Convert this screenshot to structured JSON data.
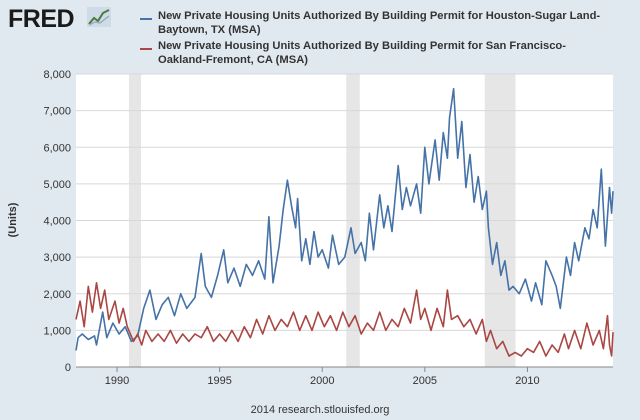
{
  "header": {
    "logo_text": "FRED",
    "logo_icon": "trend-line-icon",
    "legend": [
      {
        "label": "New Private Housing Units Authorized By Building Permit for Houston-Sugar Land-Baytown, TX (MSA)",
        "color": "#4572a7"
      },
      {
        "label": "New Private Housing Units Authorized By Building Permit for San Francisco-Oakland-Fremont, CA (MSA)",
        "color": "#aa4643"
      }
    ]
  },
  "footer": {
    "source": "2014 research.stlouisfed.org"
  },
  "chart_data": {
    "type": "line",
    "title": "",
    "xlabel": "",
    "ylabel": "(Units)",
    "xlim": [
      1988.0,
      2014.17
    ],
    "ylim": [
      0,
      8000
    ],
    "x_ticks": [
      1990,
      1995,
      2000,
      2005,
      2010
    ],
    "y_ticks": [
      0,
      1000,
      2000,
      3000,
      4000,
      5000,
      6000,
      7000,
      8000
    ],
    "y_tick_labels": [
      "0",
      "1,000",
      "2,000",
      "3,000",
      "4,000",
      "5,000",
      "6,000",
      "7,000",
      "8,000"
    ],
    "grid": true,
    "recessions": [
      [
        1990.58,
        1991.17
      ],
      [
        2001.17,
        2001.83
      ],
      [
        2007.92,
        2009.42
      ]
    ],
    "recession_color": "#e6e6e6",
    "series": [
      {
        "name": "New Private Housing Units Authorized By Building Permit for Houston-Sugar Land-Baytown, TX (MSA)",
        "color": "#4572a7",
        "points": [
          [
            1988.0,
            450
          ],
          [
            1988.1,
            800
          ],
          [
            1988.3,
            900
          ],
          [
            1988.6,
            750
          ],
          [
            1988.9,
            850
          ],
          [
            1989.0,
            600
          ],
          [
            1989.3,
            1500
          ],
          [
            1989.5,
            800
          ],
          [
            1989.8,
            1200
          ],
          [
            1990.1,
            900
          ],
          [
            1990.4,
            1100
          ],
          [
            1990.7,
            700
          ],
          [
            1991.0,
            850
          ],
          [
            1991.3,
            1600
          ],
          [
            1991.6,
            2100
          ],
          [
            1991.9,
            1300
          ],
          [
            1992.2,
            1700
          ],
          [
            1992.5,
            1900
          ],
          [
            1992.8,
            1400
          ],
          [
            1993.1,
            2000
          ],
          [
            1993.4,
            1600
          ],
          [
            1993.8,
            1900
          ],
          [
            1994.1,
            3100
          ],
          [
            1994.3,
            2200
          ],
          [
            1994.6,
            1900
          ],
          [
            1994.9,
            2500
          ],
          [
            1995.2,
            3200
          ],
          [
            1995.4,
            2300
          ],
          [
            1995.7,
            2700
          ],
          [
            1996.0,
            2200
          ],
          [
            1996.3,
            2800
          ],
          [
            1996.6,
            2500
          ],
          [
            1996.9,
            2900
          ],
          [
            1997.2,
            2400
          ],
          [
            1997.4,
            4100
          ],
          [
            1997.6,
            2300
          ],
          [
            1997.9,
            3300
          ],
          [
            1998.1,
            4300
          ],
          [
            1998.3,
            5100
          ],
          [
            1998.5,
            4400
          ],
          [
            1998.7,
            3800
          ],
          [
            1998.8,
            4600
          ],
          [
            1999.0,
            2900
          ],
          [
            1999.2,
            3500
          ],
          [
            1999.4,
            2800
          ],
          [
            1999.6,
            3700
          ],
          [
            1999.8,
            3000
          ],
          [
            2000.0,
            3200
          ],
          [
            2000.3,
            2700
          ],
          [
            2000.5,
            3600
          ],
          [
            2000.8,
            2800
          ],
          [
            2001.1,
            3000
          ],
          [
            2001.4,
            3800
          ],
          [
            2001.6,
            3100
          ],
          [
            2001.9,
            3400
          ],
          [
            2002.1,
            2900
          ],
          [
            2002.3,
            4200
          ],
          [
            2002.5,
            3200
          ],
          [
            2002.8,
            4700
          ],
          [
            2003.0,
            3800
          ],
          [
            2003.2,
            4400
          ],
          [
            2003.4,
            3700
          ],
          [
            2003.7,
            5500
          ],
          [
            2003.9,
            4300
          ],
          [
            2004.1,
            4900
          ],
          [
            2004.3,
            4400
          ],
          [
            2004.6,
            5000
          ],
          [
            2004.8,
            4200
          ],
          [
            2005.0,
            6000
          ],
          [
            2005.2,
            5000
          ],
          [
            2005.5,
            6200
          ],
          [
            2005.7,
            5100
          ],
          [
            2005.9,
            6400
          ],
          [
            2006.1,
            5700
          ],
          [
            2006.2,
            6800
          ],
          [
            2006.4,
            7600
          ],
          [
            2006.6,
            5700
          ],
          [
            2006.8,
            6700
          ],
          [
            2007.0,
            4900
          ],
          [
            2007.2,
            5800
          ],
          [
            2007.4,
            4500
          ],
          [
            2007.6,
            5200
          ],
          [
            2007.8,
            4300
          ],
          [
            2008.0,
            4800
          ],
          [
            2008.1,
            3800
          ],
          [
            2008.3,
            2800
          ],
          [
            2008.5,
            3400
          ],
          [
            2008.7,
            2500
          ],
          [
            2008.9,
            2900
          ],
          [
            2009.1,
            2100
          ],
          [
            2009.3,
            2200
          ],
          [
            2009.6,
            2000
          ],
          [
            2009.9,
            2400
          ],
          [
            2010.2,
            1800
          ],
          [
            2010.4,
            2300
          ],
          [
            2010.7,
            1700
          ],
          [
            2010.9,
            2900
          ],
          [
            2011.2,
            2500
          ],
          [
            2011.4,
            2200
          ],
          [
            2011.6,
            1600
          ],
          [
            2011.9,
            3000
          ],
          [
            2012.1,
            2500
          ],
          [
            2012.3,
            3400
          ],
          [
            2012.5,
            2900
          ],
          [
            2012.8,
            3800
          ],
          [
            2013.0,
            3500
          ],
          [
            2013.2,
            4300
          ],
          [
            2013.4,
            3800
          ],
          [
            2013.6,
            5400
          ],
          [
            2013.8,
            3300
          ],
          [
            2014.0,
            4900
          ],
          [
            2014.1,
            4200
          ],
          [
            2014.17,
            4800
          ]
        ]
      },
      {
        "name": "New Private Housing Units Authorized By Building Permit for San Francisco-Oakland-Fremont, CA (MSA)",
        "color": "#aa4643",
        "points": [
          [
            1988.0,
            1300
          ],
          [
            1988.2,
            1800
          ],
          [
            1988.4,
            1100
          ],
          [
            1988.6,
            2200
          ],
          [
            1988.8,
            1500
          ],
          [
            1989.0,
            2300
          ],
          [
            1989.2,
            1600
          ],
          [
            1989.4,
            2100
          ],
          [
            1989.6,
            1300
          ],
          [
            1989.9,
            1800
          ],
          [
            1990.1,
            1200
          ],
          [
            1990.3,
            1600
          ],
          [
            1990.5,
            1100
          ],
          [
            1990.8,
            700
          ],
          [
            1991.0,
            900
          ],
          [
            1991.2,
            600
          ],
          [
            1991.4,
            1000
          ],
          [
            1991.7,
            700
          ],
          [
            1992.0,
            900
          ],
          [
            1992.3,
            700
          ],
          [
            1992.6,
            1000
          ],
          [
            1992.9,
            650
          ],
          [
            1993.2,
            900
          ],
          [
            1993.5,
            700
          ],
          [
            1993.8,
            900
          ],
          [
            1994.1,
            800
          ],
          [
            1994.4,
            1100
          ],
          [
            1994.7,
            700
          ],
          [
            1995.0,
            900
          ],
          [
            1995.3,
            700
          ],
          [
            1995.6,
            1000
          ],
          [
            1995.9,
            700
          ],
          [
            1996.2,
            1100
          ],
          [
            1996.5,
            800
          ],
          [
            1996.8,
            1300
          ],
          [
            1997.1,
            900
          ],
          [
            1997.4,
            1400
          ],
          [
            1997.7,
            1000
          ],
          [
            1998.0,
            1300
          ],
          [
            1998.3,
            1100
          ],
          [
            1998.6,
            1500
          ],
          [
            1998.9,
            1000
          ],
          [
            1999.2,
            1400
          ],
          [
            1999.5,
            1000
          ],
          [
            1999.8,
            1500
          ],
          [
            2000.1,
            1100
          ],
          [
            2000.4,
            1400
          ],
          [
            2000.7,
            1000
          ],
          [
            2001.0,
            1500
          ],
          [
            2001.3,
            1100
          ],
          [
            2001.6,
            1400
          ],
          [
            2001.9,
            900
          ],
          [
            2002.2,
            1200
          ],
          [
            2002.5,
            1000
          ],
          [
            2002.8,
            1500
          ],
          [
            2003.1,
            1000
          ],
          [
            2003.4,
            1300
          ],
          [
            2003.7,
            1100
          ],
          [
            2004.0,
            1600
          ],
          [
            2004.3,
            1200
          ],
          [
            2004.6,
            2100
          ],
          [
            2004.8,
            1300
          ],
          [
            2005.0,
            1600
          ],
          [
            2005.3,
            1000
          ],
          [
            2005.6,
            1600
          ],
          [
            2005.9,
            1100
          ],
          [
            2006.1,
            2100
          ],
          [
            2006.3,
            1300
          ],
          [
            2006.6,
            1400
          ],
          [
            2006.9,
            1100
          ],
          [
            2007.2,
            1300
          ],
          [
            2007.5,
            900
          ],
          [
            2007.8,
            1300
          ],
          [
            2008.0,
            700
          ],
          [
            2008.2,
            1000
          ],
          [
            2008.5,
            500
          ],
          [
            2008.8,
            700
          ],
          [
            2009.1,
            300
          ],
          [
            2009.4,
            400
          ],
          [
            2009.7,
            300
          ],
          [
            2010.0,
            500
          ],
          [
            2010.3,
            400
          ],
          [
            2010.6,
            700
          ],
          [
            2010.9,
            300
          ],
          [
            2011.2,
            600
          ],
          [
            2011.5,
            400
          ],
          [
            2011.8,
            900
          ],
          [
            2012.0,
            500
          ],
          [
            2012.3,
            1000
          ],
          [
            2012.6,
            500
          ],
          [
            2012.9,
            1200
          ],
          [
            2013.2,
            600
          ],
          [
            2013.5,
            1000
          ],
          [
            2013.7,
            500
          ],
          [
            2013.9,
            1400
          ],
          [
            2014.0,
            600
          ],
          [
            2014.1,
            300
          ],
          [
            2014.17,
            950
          ]
        ]
      }
    ]
  }
}
